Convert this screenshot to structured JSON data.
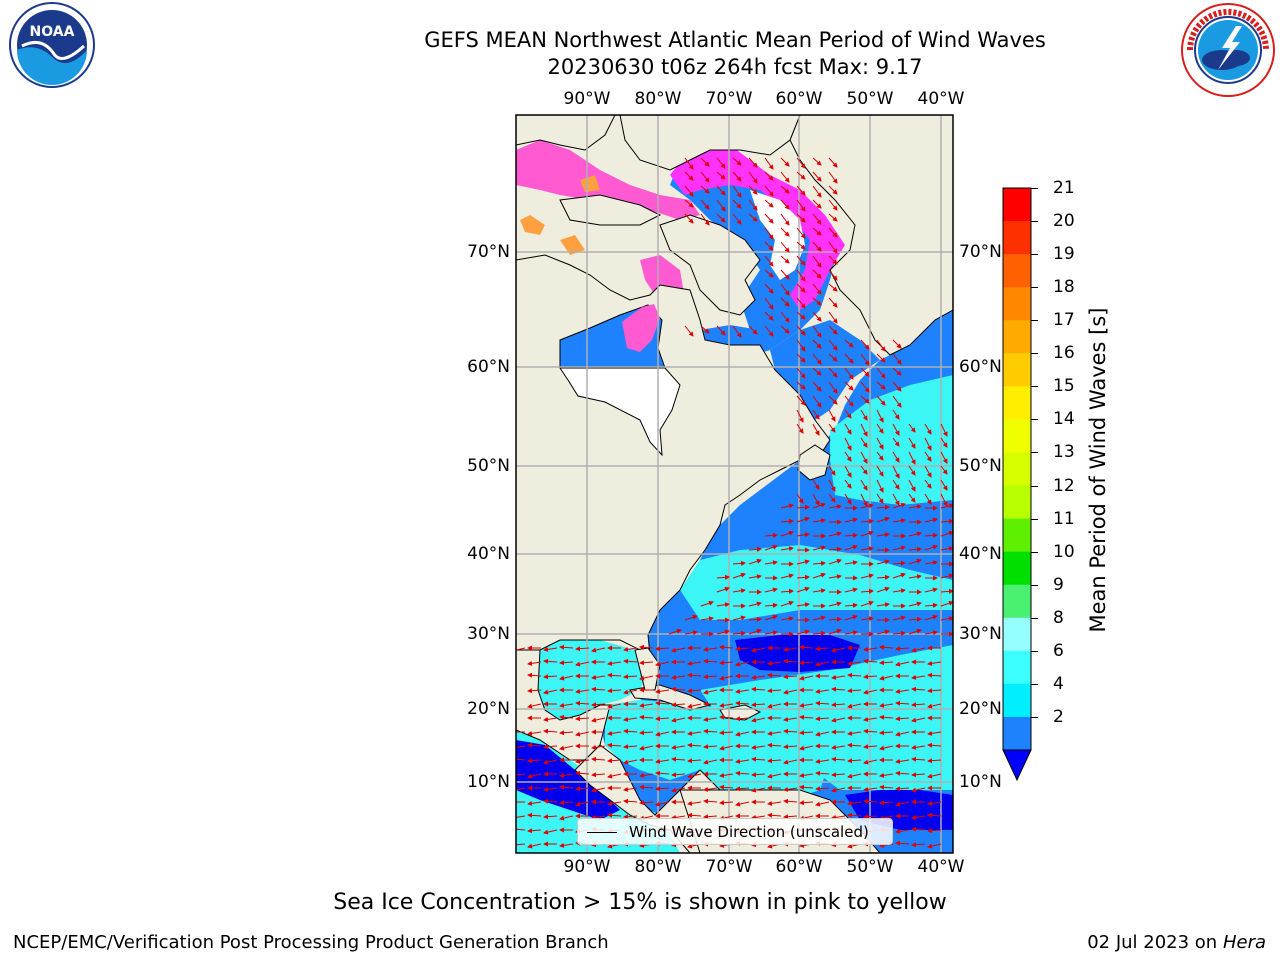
{
  "title": {
    "line1": "GEFS MEAN Northwest Atlantic Mean Period of Wind Waves",
    "line2": "20230630 t06z 264h fcst   Max: 9.17"
  },
  "logos": {
    "left": {
      "icon": "noaa-logo-icon",
      "text": "NOAA",
      "ring_text": "NATIONAL OCEANIC AND ATMOSPHERIC ADMINISTRATION · U.S. DEPARTMENT OF COMMERCE"
    },
    "right": {
      "icon": "nws-logo-icon",
      "ring_text": "NATIONAL WEATHER SERVICE"
    }
  },
  "map": {
    "lon_labels": [
      "90°W",
      "80°W",
      "70°W",
      "60°W",
      "50°W",
      "40°W"
    ],
    "lat_labels": [
      "70°N",
      "60°N",
      "50°N",
      "40°N",
      "30°N",
      "20°N",
      "10°N"
    ],
    "colors": {
      "land": "#efedde",
      "ocean_deep": "#0000ee",
      "ocean_blue": "#1e82ff",
      "ocean_cyan": "#3cf5f5",
      "ocean_lightcyan": "#96ffff",
      "ice_pink": "#ff5ad2",
      "ice_magenta": "#ff32ff",
      "ice_orange": "#ffa040",
      "arrow": "#e00000",
      "grid": "#b0b0b0",
      "coast": "#000000"
    },
    "legend_label": "Wind Wave Direction (unscaled)"
  },
  "colorbar": {
    "label": "Mean Period of Wind Waves [s]",
    "ticks": [
      "21",
      "20",
      "19",
      "18",
      "17",
      "16",
      "15",
      "14",
      "13",
      "12",
      "11",
      "10",
      "9",
      "8",
      "6",
      "4",
      "2"
    ],
    "colors_top_to_bottom": [
      "#ff0000",
      "#ff3000",
      "#ff6000",
      "#ff8800",
      "#ffaa00",
      "#ffcc00",
      "#ffee00",
      "#f0ff00",
      "#d8ff00",
      "#b8ff00",
      "#5ef000",
      "#00e000",
      "#4af070",
      "#96ffff",
      "#3cffff",
      "#00eeff",
      "#1e82ff"
    ],
    "extend_color": "#0000ff"
  },
  "caption": "Sea Ice Concentration > 15% is shown in pink to yellow",
  "footer": {
    "left": "NCEP/EMC/Verification Post Processing Product Generation Branch",
    "date": "02 Jul 2023 on ",
    "host": "Hera"
  }
}
